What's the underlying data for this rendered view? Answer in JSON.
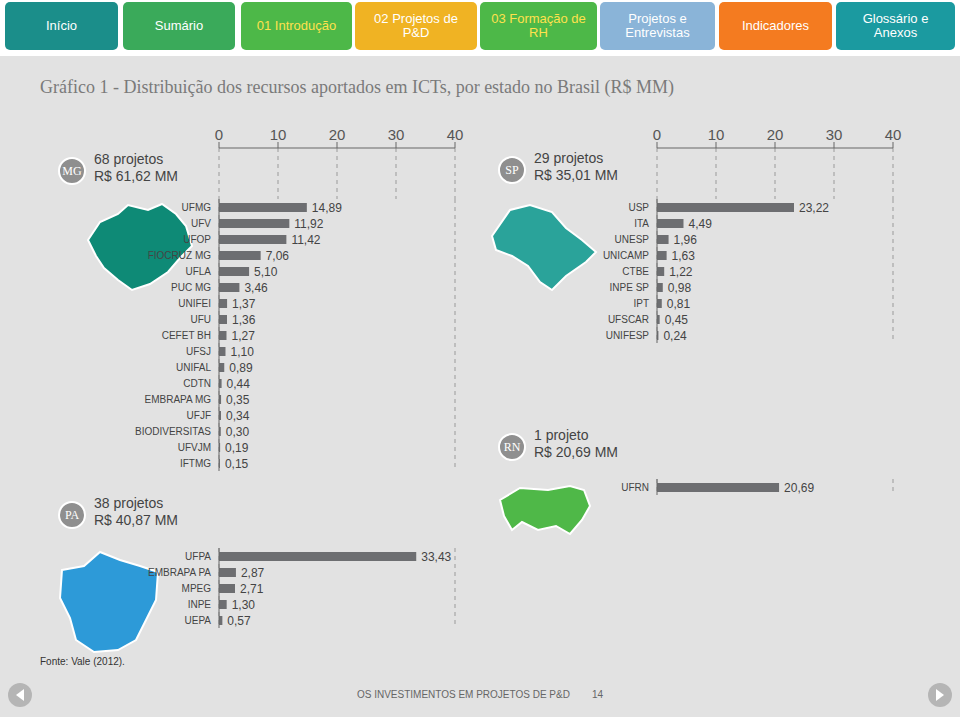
{
  "page": {
    "nav": [
      "Início",
      "Sumário",
      "01 Introdução",
      "02 Projetos de P&D",
      "03 Formação de RH",
      "Projetos e Entrevistas",
      "Indicadores",
      "Glossário e Anexos"
    ],
    "title": "Gráfico 1 - Distribuição dos recursos aportados em ICTs, por estado no Brasil (R$ MM)",
    "source": "Fonte: Vale (2012).",
    "footer": {
      "text": "OS INVESTIMENTOS EM PROJETOS DE P&D",
      "page": "14"
    }
  },
  "chart_data": [
    {
      "type": "bar",
      "orientation": "horizontal",
      "title": "MG",
      "annotations": [
        "68 projetos",
        "R$ 61,62 MM"
      ],
      "categories": [
        "UFMG",
        "UFV",
        "UFOP",
        "FIOCRUZ MG",
        "UFLA",
        "PUC MG",
        "UNIFEI",
        "UFU",
        "CEFET BH",
        "UFSJ",
        "UNIFAL",
        "CDTN",
        "EMBRAPA MG",
        "UFJF",
        "BIODIVERSITAS",
        "UFVJM",
        "IFTMG"
      ],
      "values": [
        14.89,
        11.92,
        11.42,
        7.06,
        5.1,
        3.46,
        1.37,
        1.36,
        1.27,
        1.1,
        0.89,
        0.44,
        0.35,
        0.34,
        0.3,
        0.19,
        0.15
      ],
      "value_labels": [
        "14,89",
        "11,92",
        "11,42",
        "7,06",
        "5,10",
        "3,46",
        "1,37",
        "1,36",
        "1,27",
        "1,10",
        "0,89",
        "0,44",
        "0,35",
        "0,34",
        "0,30",
        "0,19",
        "0,15"
      ],
      "xlim": [
        0,
        40
      ],
      "xticks": [
        0,
        10,
        20,
        30,
        40
      ],
      "grid": true,
      "data_labels": true,
      "color": "#6d6e71"
    },
    {
      "type": "bar",
      "orientation": "horizontal",
      "title": "SP",
      "annotations": [
        "29 projetos",
        "R$ 35,01 MM"
      ],
      "categories": [
        "USP",
        "ITA",
        "UNESP",
        "UNICAMP",
        "CTBE",
        "INPE SP",
        "IPT",
        "UFSCAR",
        "UNIFESP"
      ],
      "values": [
        23.22,
        4.49,
        1.96,
        1.63,
        1.22,
        0.98,
        0.81,
        0.45,
        0.24
      ],
      "value_labels": [
        "23,22",
        "4,49",
        "1,96",
        "1,63",
        "1,22",
        "0,98",
        "0,81",
        "0,45",
        "0,24"
      ],
      "xlim": [
        0,
        40
      ],
      "xticks": [
        0,
        10,
        20,
        30,
        40
      ],
      "grid": true,
      "data_labels": true,
      "color": "#6d6e71"
    },
    {
      "type": "bar",
      "orientation": "horizontal",
      "title": "RN",
      "annotations": [
        "1 projeto",
        "R$ 20,69 MM"
      ],
      "categories": [
        "UFRN"
      ],
      "values": [
        20.69
      ],
      "value_labels": [
        "20,69"
      ],
      "xlim": [
        0,
        40
      ],
      "xticks": [
        0,
        10,
        20,
        30,
        40
      ],
      "grid": true,
      "tick_labels": "y",
      "data_labels": true,
      "color": "#6d6e71"
    },
    {
      "type": "bar",
      "orientation": "horizontal",
      "title": "PA",
      "annotations": [
        "38 projetos",
        "R$ 40,87 MM"
      ],
      "categories": [
        "UFPA",
        "EMBRAPA PA",
        "MPEG",
        "INPE",
        "UEPA"
      ],
      "values": [
        33.43,
        2.87,
        2.71,
        1.3,
        0.57
      ],
      "value_labels": [
        "33,43",
        "2,87",
        "2,71",
        "1,30",
        "0,57"
      ],
      "xlim": [
        0,
        40
      ],
      "xticks": [
        0,
        10,
        20,
        30,
        40
      ],
      "grid": true,
      "tick_labels": "y",
      "data_labels": true,
      "color": "#6d6e71"
    }
  ]
}
